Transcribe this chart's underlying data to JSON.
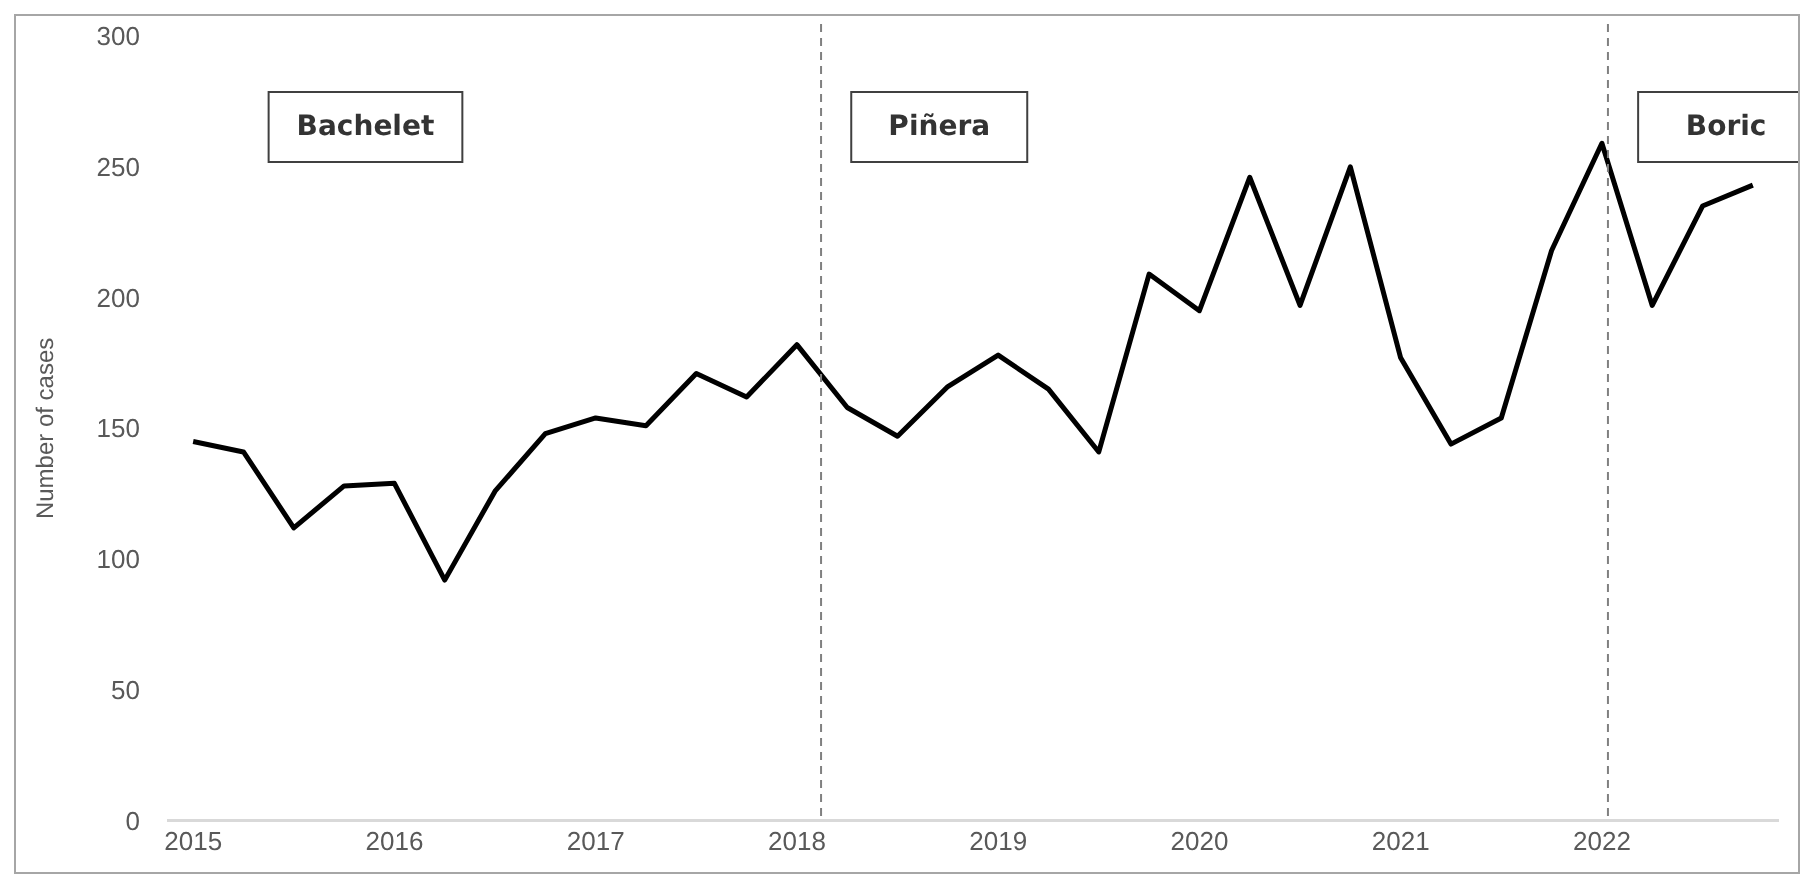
{
  "chart_data": {
    "type": "line",
    "ylabel": "Number of cases",
    "x": [
      2015,
      2015.25,
      2015.5,
      2015.75,
      2016,
      2016.25,
      2016.5,
      2016.75,
      2017,
      2017.25,
      2017.5,
      2017.75,
      2018,
      2018.25,
      2018.5,
      2018.75,
      2019,
      2019.25,
      2019.5,
      2019.75,
      2020,
      2020.25,
      2020.5,
      2020.75,
      2021,
      2021.25,
      2021.5,
      2021.75,
      2022,
      2022.25,
      2022.5,
      2022.75
    ],
    "series": [
      {
        "color": "#000000",
        "values": [
          145,
          141,
          112,
          128,
          129,
          92,
          126,
          148,
          154,
          151,
          171,
          162,
          182,
          158,
          147,
          166,
          178,
          165,
          141,
          209,
          195,
          246,
          197,
          250,
          177,
          144,
          154,
          218,
          259,
          197,
          235,
          243
        ]
      }
    ],
    "xlim": [
      2014.875,
      2022.875
    ],
    "xticks": [
      2015,
      2016,
      2017,
      2018,
      2019,
      2020,
      2021,
      2022
    ],
    "ylim": [
      0,
      300
    ],
    "yticks": [
      0,
      50,
      100,
      150,
      200,
      250,
      300
    ],
    "ref_lines": [
      {
        "axis": "x",
        "value": 2018.12,
        "color": "#808080",
        "line_style": "dashed"
      },
      {
        "axis": "x",
        "value": 2022.03,
        "color": "#808080",
        "line_style": "dashed"
      }
    ],
    "annotations": [
      "Bachelet",
      "Piñera",
      "Boric"
    ],
    "grid": false,
    "legend": false,
    "marker": "none",
    "line_style": "solid"
  }
}
